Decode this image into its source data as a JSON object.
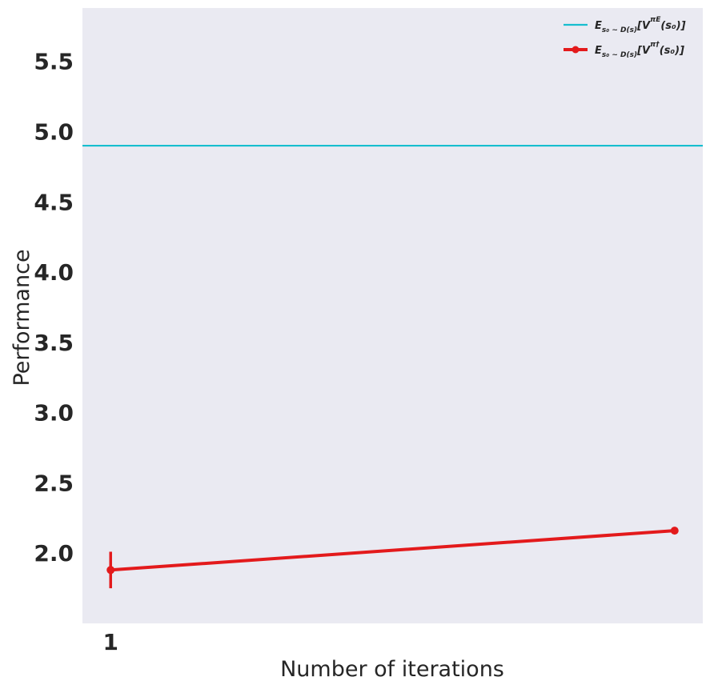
{
  "chart_data": {
    "type": "line",
    "xlabel": "Number of iterations",
    "ylabel": "Performance",
    "x_ticks": [
      "1"
    ],
    "y_ticks": [
      "2.0",
      "2.5",
      "3.0",
      "3.5",
      "4.0",
      "4.5",
      "5.0",
      "5.5"
    ],
    "xlim": [
      0.95,
      2.05
    ],
    "ylim": [
      1.5,
      5.88
    ],
    "grid": false,
    "legend_placement": "top-right",
    "series": [
      {
        "name": "E_{s0~D(s)}[V^{πE}(s0)]",
        "legend_parts": {
          "base": "E",
          "sub": "s₀ ~ D(s)",
          "mid": "[V",
          "sup": "πE",
          "end": "(s₀)]"
        },
        "style": "hline",
        "color": "#17becf",
        "y": 4.9
      },
      {
        "name": "E_{s0~D(s)}[V^{π†}(s0)]",
        "legend_parts": {
          "base": "E",
          "sub": "s₀ ~ D(s)",
          "mid": "[V",
          "sup": "π†",
          "end": "(s₀)]"
        },
        "style": "errorbar",
        "color": "#e31a1c",
        "x": [
          1,
          2
        ],
        "y": [
          1.88,
          2.16
        ],
        "yerr": [
          0.13,
          0.0
        ]
      }
    ]
  }
}
